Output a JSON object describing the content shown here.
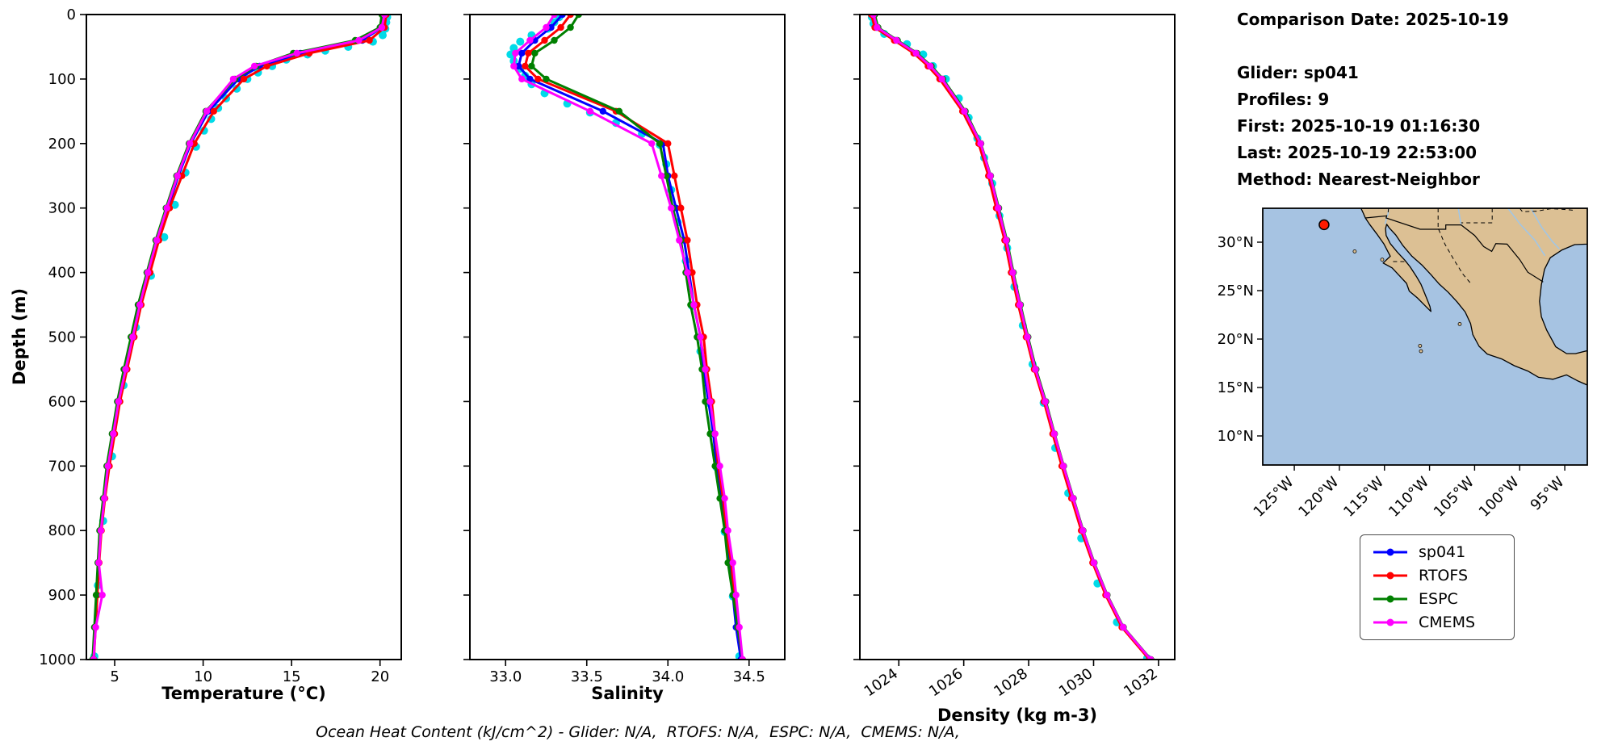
{
  "info": {
    "comparison_date": "Comparison Date: 2025-10-19",
    "glider": "Glider: sp041",
    "profiles": "Profiles: 9",
    "first": "First: 2025-10-19 01:16:30",
    "last": "Last: 2025-10-19 22:53:00",
    "method": "Method: Nearest-Neighbor"
  },
  "footer": {
    "text": "Ocean Heat Content (kJ/cm^2) - Glider: N/A,  RTOFS: N/A,  ESPC: N/A,  CMEMS: N/A,"
  },
  "axes": {
    "ylabel": "Depth (m)",
    "depth_lim": [
      0,
      1000
    ],
    "depth_ticks": [
      0,
      100,
      200,
      300,
      400,
      500,
      600,
      700,
      800,
      900,
      1000
    ]
  },
  "legend": {
    "entries": [
      {
        "label": "sp041",
        "color": "#0000ff"
      },
      {
        "label": "RTOFS",
        "color": "#ff0000"
      },
      {
        "label": "ESPC",
        "color": "#008000"
      },
      {
        "label": "CMEMS",
        "color": "#ff00ff"
      }
    ]
  },
  "chart_data": [
    {
      "id": "temperature",
      "type": "line",
      "xlabel": "Temperature (°C)",
      "ylabel": "Depth (m)",
      "xlim": [
        3.4,
        21.2
      ],
      "ylim": [
        0,
        1000
      ],
      "y_inverted": true,
      "xticks": [
        {
          "value": 5,
          "label": "5"
        },
        {
          "value": 10,
          "label": "10"
        },
        {
          "value": 15,
          "label": "15"
        },
        {
          "value": 20,
          "label": "20"
        }
      ],
      "xtick_rotation": 0,
      "depths": [
        0,
        20,
        40,
        60,
        80,
        100,
        150,
        200,
        250,
        300,
        350,
        400,
        450,
        500,
        550,
        600,
        650,
        700,
        750,
        800,
        850,
        900,
        950,
        1000
      ],
      "series": [
        {
          "name": "sp041",
          "color": "#0000ff",
          "values": [
            20.2,
            20.1,
            19.0,
            15.5,
            13.2,
            12.0,
            10.3,
            9.3,
            8.6,
            8.0,
            7.4,
            6.9,
            6.4,
            6.0,
            5.6,
            5.2,
            4.9,
            4.6,
            4.4,
            4.2,
            4.1,
            4.0,
            3.9,
            3.8
          ]
        },
        {
          "name": "RTOFS",
          "color": "#ff0000",
          "values": [
            20.35,
            20.25,
            19.4,
            16.0,
            13.6,
            12.3,
            10.6,
            9.5,
            8.8,
            8.1,
            7.5,
            7.0,
            6.5,
            6.1,
            5.7,
            5.3,
            5.0,
            4.7,
            4.45,
            4.25,
            4.12,
            4.02,
            3.92,
            3.82
          ]
        },
        {
          "name": "ESPC",
          "color": "#008000",
          "values": [
            20.1,
            20.0,
            18.6,
            15.1,
            13.0,
            11.8,
            10.15,
            9.2,
            8.5,
            7.9,
            7.32,
            6.82,
            6.32,
            5.92,
            5.52,
            5.15,
            4.85,
            4.55,
            4.35,
            4.15,
            4.05,
            3.95,
            3.85,
            3.75
          ]
        },
        {
          "name": "CMEMS",
          "color": "#ff00ff",
          "values": [
            20.25,
            20.1,
            18.8,
            15.3,
            12.9,
            11.7,
            10.2,
            9.25,
            8.55,
            7.95,
            7.38,
            6.88,
            6.42,
            6.02,
            5.62,
            5.22,
            4.92,
            4.62,
            4.42,
            4.22,
            4.1,
            4.3,
            3.93,
            3.8
          ]
        }
      ],
      "raw_scatter": {
        "name": "glider-raw-points",
        "color": "#00dbe8",
        "points": [
          [
            20.4,
            4
          ],
          [
            20.35,
            12
          ],
          [
            20.3,
            22
          ],
          [
            20.15,
            32
          ],
          [
            19.6,
            42
          ],
          [
            18.2,
            50
          ],
          [
            16.9,
            56
          ],
          [
            15.9,
            62
          ],
          [
            14.7,
            70
          ],
          [
            13.9,
            80
          ],
          [
            13.1,
            90
          ],
          [
            12.5,
            100
          ],
          [
            11.9,
            115
          ],
          [
            11.3,
            130
          ],
          [
            10.85,
            145
          ],
          [
            10.45,
            162
          ],
          [
            10.05,
            180
          ],
          [
            9.6,
            205
          ],
          [
            9.0,
            245
          ],
          [
            8.4,
            295
          ],
          [
            7.8,
            345
          ],
          [
            7.05,
            405
          ],
          [
            6.2,
            485
          ],
          [
            5.5,
            575
          ],
          [
            4.85,
            685
          ],
          [
            4.35,
            785
          ],
          [
            4.05,
            885
          ],
          [
            3.85,
            995
          ]
        ]
      }
    },
    {
      "id": "salinity",
      "type": "line",
      "xlabel": "Salinity",
      "ylabel": "",
      "xlim": [
        32.78,
        34.72
      ],
      "ylim": [
        0,
        1000
      ],
      "y_inverted": true,
      "xticks": [
        {
          "value": 33.0,
          "label": "33.0"
        },
        {
          "value": 33.5,
          "label": "33.5"
        },
        {
          "value": 34.0,
          "label": "34.0"
        },
        {
          "value": 34.5,
          "label": "34.5"
        }
      ],
      "xtick_rotation": 0,
      "depths": [
        0,
        20,
        40,
        60,
        80,
        100,
        150,
        200,
        250,
        300,
        350,
        400,
        450,
        500,
        550,
        600,
        650,
        700,
        750,
        800,
        850,
        900,
        950,
        1000
      ],
      "series": [
        {
          "name": "sp041",
          "color": "#0000ff",
          "values": [
            33.35,
            33.28,
            33.18,
            33.1,
            33.08,
            33.15,
            33.6,
            33.97,
            34.0,
            34.05,
            34.1,
            34.13,
            34.16,
            34.2,
            34.22,
            34.25,
            34.28,
            34.3,
            34.33,
            34.35,
            34.38,
            34.4,
            34.42,
            34.45
          ]
        },
        {
          "name": "RTOFS",
          "color": "#ff0000",
          "values": [
            33.4,
            33.34,
            33.24,
            33.14,
            33.12,
            33.2,
            33.68,
            34.0,
            34.04,
            34.08,
            34.12,
            34.15,
            34.18,
            34.22,
            34.24,
            34.27,
            34.29,
            34.31,
            34.34,
            34.36,
            34.39,
            34.41,
            34.43,
            34.46
          ]
        },
        {
          "name": "ESPC",
          "color": "#008000",
          "values": [
            33.45,
            33.4,
            33.3,
            33.18,
            33.16,
            33.25,
            33.7,
            33.95,
            33.99,
            34.03,
            34.08,
            34.11,
            34.14,
            34.18,
            34.21,
            34.23,
            34.26,
            34.29,
            34.32,
            34.35,
            34.37,
            34.4,
            34.43,
            34.46
          ]
        },
        {
          "name": "CMEMS",
          "color": "#ff00ff",
          "values": [
            33.3,
            33.25,
            33.15,
            33.06,
            33.05,
            33.1,
            33.52,
            33.9,
            33.96,
            34.02,
            34.07,
            34.12,
            34.16,
            34.2,
            34.23,
            34.26,
            34.29,
            34.32,
            34.35,
            34.37,
            34.4,
            34.42,
            34.44,
            34.46
          ]
        }
      ],
      "raw_scatter": {
        "name": "glider-raw-points",
        "color": "#00dbe8",
        "points": [
          [
            33.33,
            4
          ],
          [
            33.3,
            12
          ],
          [
            33.26,
            22
          ],
          [
            33.16,
            32
          ],
          [
            33.09,
            42
          ],
          [
            33.05,
            52
          ],
          [
            33.03,
            62
          ],
          [
            33.05,
            72
          ],
          [
            33.09,
            84
          ],
          [
            33.12,
            95
          ],
          [
            33.16,
            108
          ],
          [
            33.24,
            122
          ],
          [
            33.38,
            138
          ],
          [
            33.52,
            152
          ],
          [
            33.68,
            168
          ],
          [
            33.84,
            185
          ],
          [
            33.95,
            202
          ],
          [
            33.99,
            232
          ],
          [
            34.02,
            272
          ],
          [
            34.06,
            322
          ],
          [
            34.11,
            382
          ],
          [
            34.15,
            452
          ],
          [
            34.2,
            522
          ],
          [
            34.25,
            602
          ],
          [
            34.3,
            702
          ],
          [
            34.35,
            802
          ],
          [
            34.4,
            902
          ],
          [
            34.44,
            995
          ]
        ]
      }
    },
    {
      "id": "density",
      "type": "line",
      "xlabel": "Density (kg m-3)",
      "ylabel": "",
      "xlim": [
        1022.8,
        1032.5
      ],
      "ylim": [
        0,
        1000
      ],
      "y_inverted": true,
      "xticks": [
        {
          "value": 1024,
          "label": "1024"
        },
        {
          "value": 1026,
          "label": "1026"
        },
        {
          "value": 1028,
          "label": "1028"
        },
        {
          "value": 1030,
          "label": "1030"
        },
        {
          "value": 1032,
          "label": "1032"
        }
      ],
      "xtick_rotation": -35,
      "depths": [
        0,
        20,
        40,
        60,
        80,
        100,
        150,
        200,
        250,
        300,
        350,
        400,
        450,
        500,
        550,
        600,
        650,
        700,
        750,
        800,
        850,
        900,
        950,
        1000
      ],
      "series": [
        {
          "name": "sp041",
          "color": "#0000ff",
          "values": [
            1023.2,
            1023.3,
            1023.9,
            1024.5,
            1024.95,
            1025.3,
            1026.0,
            1026.5,
            1026.8,
            1027.05,
            1027.3,
            1027.5,
            1027.72,
            1027.95,
            1028.2,
            1028.5,
            1028.78,
            1029.06,
            1029.36,
            1029.66,
            1030.0,
            1030.4,
            1030.9,
            1031.75
          ]
        },
        {
          "name": "RTOFS",
          "color": "#ff0000",
          "values": [
            1023.15,
            1023.26,
            1023.86,
            1024.46,
            1024.9,
            1025.26,
            1025.96,
            1026.46,
            1026.76,
            1027.0,
            1027.26,
            1027.46,
            1027.68,
            1027.92,
            1028.17,
            1028.47,
            1028.74,
            1029.02,
            1029.32,
            1029.62,
            1029.97,
            1030.37,
            1030.87,
            1031.72
          ]
        },
        {
          "name": "ESPC",
          "color": "#008000",
          "values": [
            1023.26,
            1023.36,
            1023.96,
            1024.56,
            1025.0,
            1025.36,
            1026.05,
            1026.53,
            1026.83,
            1027.08,
            1027.33,
            1027.53,
            1027.75,
            1027.98,
            1028.23,
            1028.53,
            1028.8,
            1029.08,
            1029.38,
            1029.68,
            1030.02,
            1030.42,
            1030.92,
            1031.77
          ]
        },
        {
          "name": "CMEMS",
          "color": "#ff00ff",
          "values": [
            1023.22,
            1023.33,
            1023.93,
            1024.53,
            1024.97,
            1025.33,
            1026.02,
            1026.52,
            1026.82,
            1027.06,
            1027.31,
            1027.51,
            1027.73,
            1027.96,
            1028.21,
            1028.51,
            1028.79,
            1029.07,
            1029.37,
            1029.67,
            1030.01,
            1030.41,
            1030.91,
            1031.76
          ]
        }
      ],
      "raw_scatter": {
        "name": "glider-raw-points",
        "color": "#00dbe8",
        "points": [
          [
            1023.17,
            4
          ],
          [
            1023.22,
            14
          ],
          [
            1023.55,
            30
          ],
          [
            1024.25,
            46
          ],
          [
            1024.75,
            62
          ],
          [
            1025.05,
            80
          ],
          [
            1025.45,
            100
          ],
          [
            1025.85,
            130
          ],
          [
            1026.15,
            160
          ],
          [
            1026.42,
            192
          ],
          [
            1026.63,
            222
          ],
          [
            1026.88,
            262
          ],
          [
            1027.1,
            312
          ],
          [
            1027.34,
            362
          ],
          [
            1027.56,
            422
          ],
          [
            1027.82,
            482
          ],
          [
            1028.12,
            542
          ],
          [
            1028.46,
            602
          ],
          [
            1028.82,
            672
          ],
          [
            1029.22,
            742
          ],
          [
            1029.62,
            812
          ],
          [
            1030.12,
            882
          ],
          [
            1030.72,
            942
          ],
          [
            1031.65,
            998
          ]
        ]
      }
    }
  ],
  "map": {
    "extent": {
      "lon_min": -128.5,
      "lon_max": -92.5,
      "lat_min": 7.0,
      "lat_max": 33.5
    },
    "lat_ticks": [
      {
        "value": 30,
        "label": "30°N"
      },
      {
        "value": 25,
        "label": "25°N"
      },
      {
        "value": 20,
        "label": "20°N"
      },
      {
        "value": 15,
        "label": "15°N"
      },
      {
        "value": 10,
        "label": "10°N"
      }
    ],
    "lon_ticks": [
      {
        "value": -125,
        "label": "125°W"
      },
      {
        "value": -120,
        "label": "120°W"
      },
      {
        "value": -115,
        "label": "115°W"
      },
      {
        "value": -110,
        "label": "110°W"
      },
      {
        "value": -105,
        "label": "105°W"
      },
      {
        "value": -100,
        "label": "100°W"
      },
      {
        "value": -95,
        "label": "95°W"
      }
    ],
    "marker": {
      "lon": -121.7,
      "lat": 31.8,
      "color": "#ff1a00"
    },
    "colors": {
      "ocean": "#a6c3e2",
      "land": "#dcc094",
      "coast": "#000000",
      "river": "#9fc6e8"
    }
  }
}
